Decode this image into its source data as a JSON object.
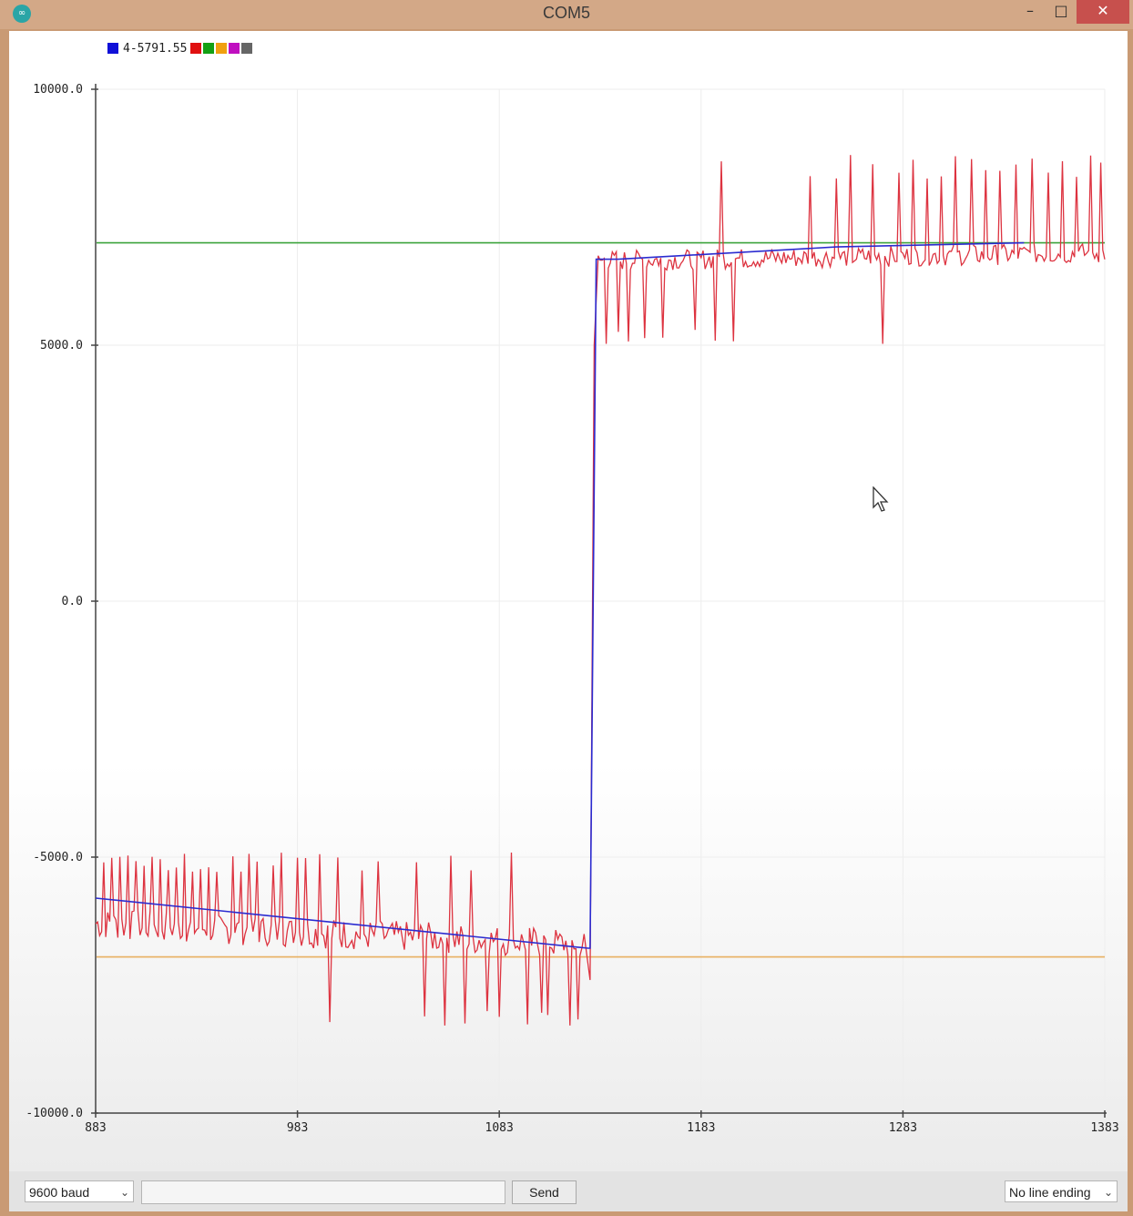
{
  "window": {
    "title": "COM5",
    "controls": {
      "minimize": "–",
      "maximize": "□",
      "close": "✕"
    },
    "app_icon": "∞"
  },
  "legend": {
    "first_label": "4-5791.55",
    "swatches": [
      "#1010d8",
      "#e01010",
      "#14a014",
      "#f0a010",
      "#c010c0",
      "#666666"
    ]
  },
  "chart_data": {
    "type": "line",
    "xlim": [
      883,
      1383
    ],
    "ylim": [
      -10000,
      10000
    ],
    "x_ticks": [
      "883",
      "983",
      "1083",
      "1183",
      "1283",
      "1383"
    ],
    "y_ticks": [
      "10000.0",
      "5000.0",
      "0.0",
      "-5000.0",
      "-10000.0"
    ],
    "grid": true,
    "series": [
      {
        "color": "#2b2bd0",
        "style": "line",
        "points": [
          [
            883,
            -5800
          ],
          [
            1127,
            -6780
          ],
          [
            1128,
            -6780
          ],
          [
            1131,
            6680
          ],
          [
            1142,
            6680
          ],
          [
            1250,
            6920
          ],
          [
            1343,
            7000
          ]
        ]
      },
      {
        "color": "#3ba33b",
        "style": "flat",
        "value": 7000
      },
      {
        "color": "#e8b060",
        "style": "flat",
        "value": -6950
      },
      {
        "color": "#dd3340",
        "style": "noisy",
        "segments": [
          {
            "x": [
              883,
              1125
            ],
            "base": [
              -6300,
              -6700
            ],
            "low_amp": 300
          },
          {
            "x": [
              1132,
              1383
            ],
            "base": [
              6650,
              6800
            ],
            "low_amp": 200
          }
        ],
        "up_spikes_x": [
          887,
          891,
          895,
          899,
          903,
          907,
          911,
          915,
          919,
          923,
          927,
          931,
          935,
          939,
          943,
          951,
          955,
          959,
          963,
          971,
          975,
          983,
          987,
          994,
          1003,
          1015,
          1023,
          1042,
          1059,
          1069,
          1089
        ],
        "up_spike_y": -4900,
        "down_spikes_x": [
          999,
          1046,
          1056,
          1066,
          1077,
          1083,
          1097,
          1104,
          1107,
          1118,
          1122,
          1132,
          1136,
          1139,
          1147,
          1154,
          1161,
          1185,
          1190,
          1273
        ],
        "down_spike_y": -8000,
        "upper_up_spikes_x": [
          1193,
          1237,
          1250,
          1257,
          1268,
          1273,
          1281,
          1288,
          1295,
          1302,
          1309,
          1317,
          1324,
          1331,
          1339,
          1347,
          1355,
          1362,
          1369,
          1376,
          1381
        ],
        "upper_up_spike_y": 8500,
        "upper_down_spikes_x": [
          1136,
          1142,
          1147,
          1155,
          1164,
          1180,
          1190,
          1199,
          1273
        ],
        "upper_down_spike_y": 5000
      }
    ]
  },
  "bottom": {
    "baud_value": "9600 baud",
    "send_label": "Send",
    "line_ending_value": "No line ending",
    "chevron": "⌄"
  }
}
